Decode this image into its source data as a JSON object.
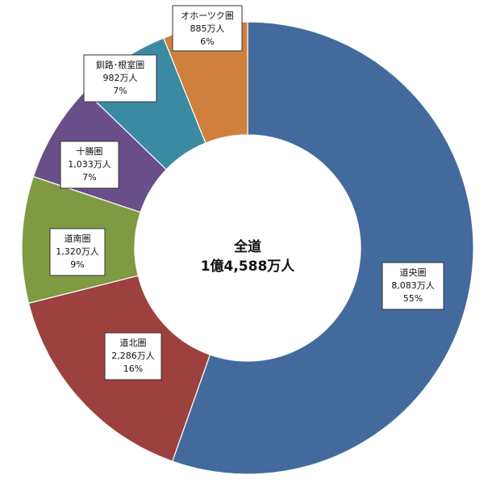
{
  "chart_data": {
    "type": "pie",
    "donut": true,
    "center_label": {
      "line1": "全道",
      "line2": "1億4,588万人"
    },
    "series": [
      {
        "name": "道央圏",
        "value": 8083,
        "value_label": "8,083万人",
        "percent_label": "55%",
        "color": "#436a9c"
      },
      {
        "name": "道北圏",
        "value": 2286,
        "value_label": "2,286万人",
        "percent_label": "16%",
        "color": "#9c413e"
      },
      {
        "name": "道南圏",
        "value": 1320,
        "value_label": "1,320万人",
        "percent_label": "9%",
        "color": "#809a44"
      },
      {
        "name": "十勝圏",
        "value": 1033,
        "value_label": "1,033万人",
        "percent_label": "7%",
        "color": "#684f87"
      },
      {
        "name": "釧路･根室圏",
        "value": 982,
        "value_label": "982万人",
        "percent_label": "7%",
        "color": "#3a8ba1"
      },
      {
        "name": "オホーツク圏",
        "value": 885,
        "value_label": "885万人",
        "percent_label": "6%",
        "color": "#d0803d"
      }
    ]
  }
}
